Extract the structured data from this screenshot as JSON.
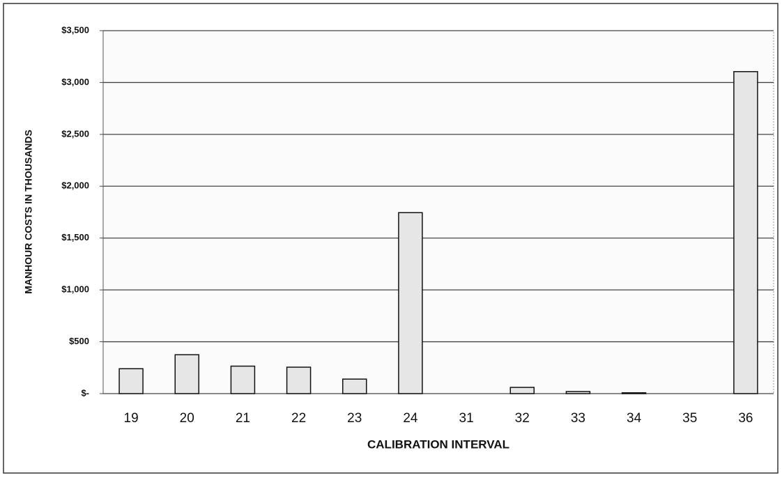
{
  "chart_data": {
    "type": "bar",
    "x_label": "CALIBRATION INTERVAL",
    "y_label": "MANHOUR COSTS IN THOUSANDS",
    "categories": [
      "19",
      "20",
      "21",
      "22",
      "23",
      "24",
      "31",
      "32",
      "33",
      "34",
      "35",
      "36"
    ],
    "values": [
      240,
      375,
      265,
      255,
      140,
      1745,
      0,
      60,
      20,
      8,
      0,
      3105
    ],
    "color": "#e6e6e6",
    "ylim": [
      0,
      3500
    ],
    "yticks": [
      {
        "value": 0,
        "label": "$-"
      },
      {
        "value": 500,
        "label": "$500"
      },
      {
        "value": 1000,
        "label": "$1,000"
      },
      {
        "value": 1500,
        "label": "$1,500"
      },
      {
        "value": 2000,
        "label": "$2,000"
      },
      {
        "value": 2500,
        "label": "$2,500"
      },
      {
        "value": 3000,
        "label": "$3,000"
      },
      {
        "value": 3500,
        "label": "$3,500"
      }
    ],
    "grid": true
  }
}
